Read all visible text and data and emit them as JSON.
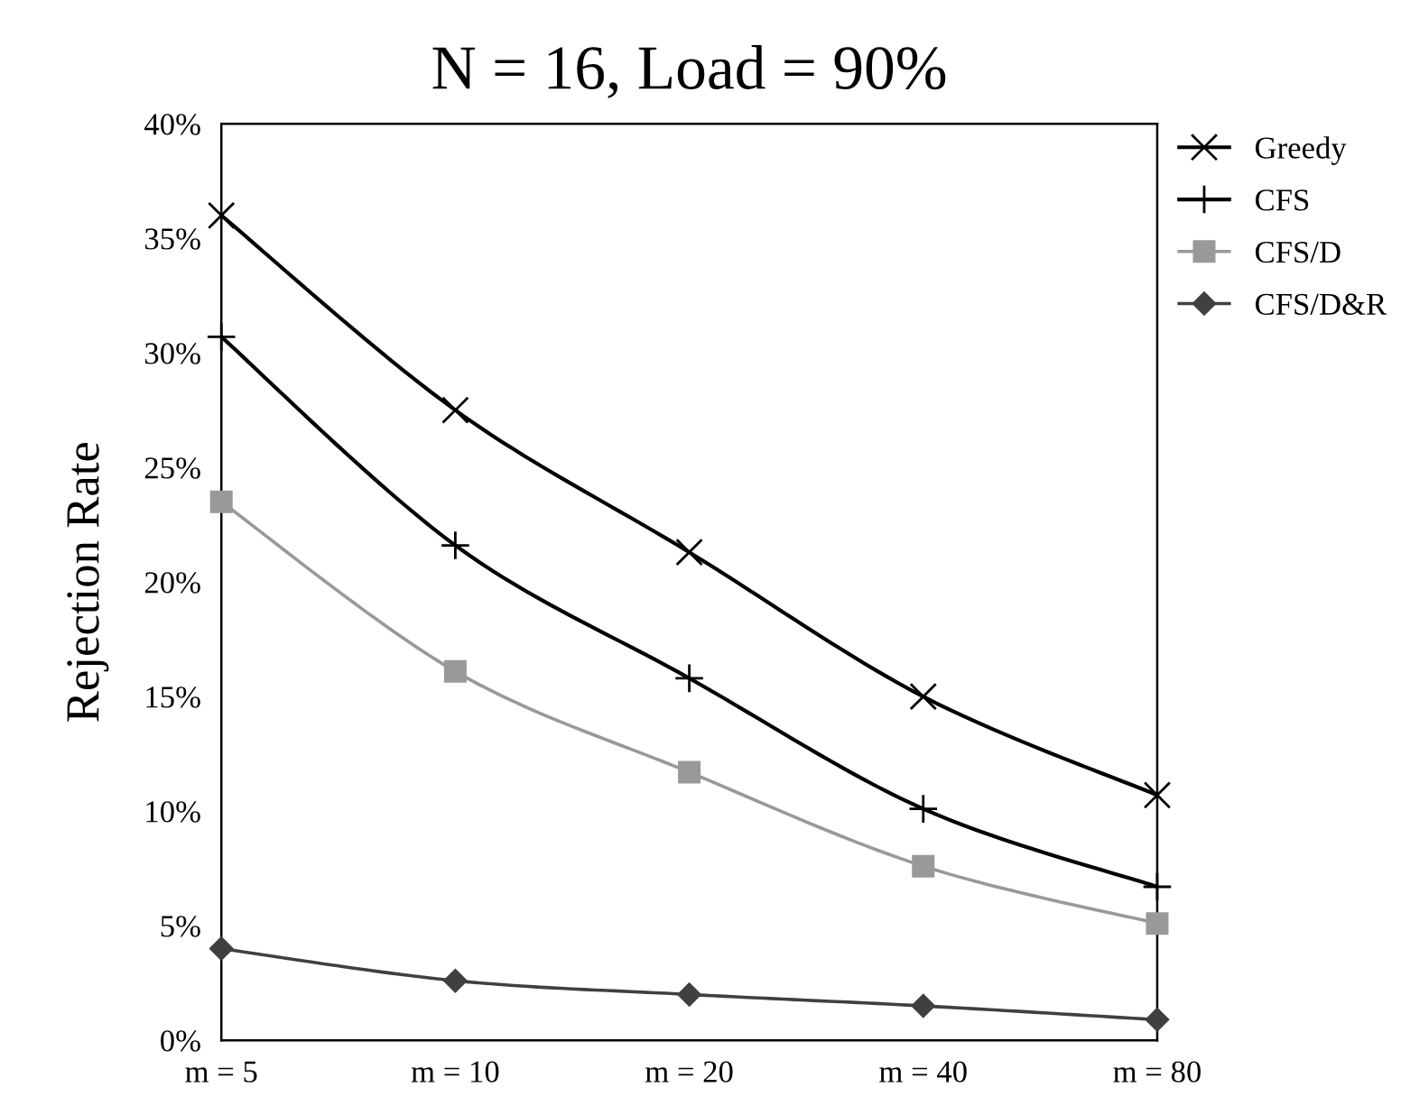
{
  "chart_data": {
    "type": "line",
    "title": "N = 16, Load = 90%",
    "ylabel": "Rejection Rate",
    "categories": [
      "m = 5",
      "m = 10",
      "m = 20",
      "m = 40",
      "m = 80"
    ],
    "ylim": [
      0,
      40
    ],
    "yticks": [
      {
        "value": 0,
        "label": "0%"
      },
      {
        "value": 5,
        "label": "5%"
      },
      {
        "value": 10,
        "label": "10%"
      },
      {
        "value": 15,
        "label": "15%"
      },
      {
        "value": 20,
        "label": "20%"
      },
      {
        "value": 25,
        "label": "25%"
      },
      {
        "value": 30,
        "label": "30%"
      },
      {
        "value": 35,
        "label": "35%"
      },
      {
        "value": 40,
        "label": "40%"
      }
    ],
    "grid": false,
    "legend": "right",
    "line_style": "solid",
    "series": [
      {
        "name": "Greedy",
        "color": "#000000",
        "marker": "cross",
        "values": [
          36.0,
          27.5,
          21.3,
          15.0,
          10.7
        ]
      },
      {
        "name": "CFS",
        "color": "#000000",
        "marker": "plus",
        "values": [
          30.7,
          21.6,
          15.8,
          10.1,
          6.7
        ]
      },
      {
        "name": "CFS/D",
        "color": "#999999",
        "marker": "square",
        "values": [
          23.5,
          16.1,
          11.7,
          7.6,
          5.1
        ]
      },
      {
        "name": "CFS/D&R",
        "color": "#404040",
        "marker": "diamond",
        "values": [
          4.0,
          2.6,
          2.0,
          1.5,
          0.9
        ]
      }
    ]
  }
}
